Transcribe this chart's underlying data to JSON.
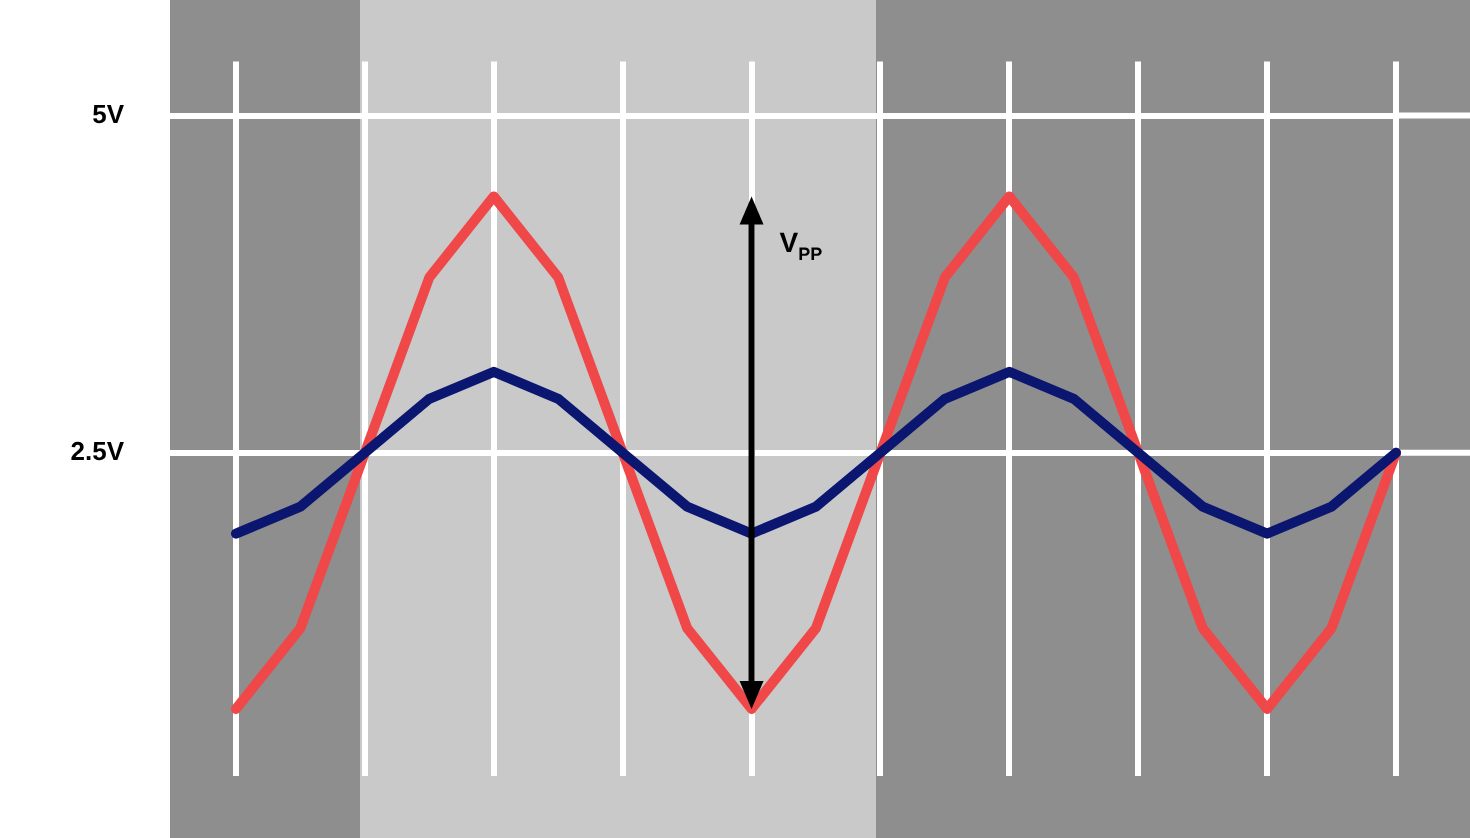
{
  "chart_data": {
    "type": "line",
    "categories": [
      null,
      null,
      null,
      null,
      null,
      null,
      null,
      null,
      null,
      null,
      null,
      null,
      null,
      null,
      null,
      null,
      null,
      null,
      null
    ],
    "series": [
      {
        "color": "#0b1670",
        "values": [
          1.9,
          2.1,
          2.5,
          2.9,
          3.1,
          2.9,
          2.5,
          2.1,
          1.9,
          2.1,
          2.5,
          2.9,
          3.1,
          2.9,
          2.5,
          2.1,
          1.9,
          2.1,
          2.5
        ]
      },
      {
        "color": "#f04848",
        "values": [
          0.6,
          1.2,
          2.5,
          3.8,
          4.4,
          3.8,
          2.5,
          1.2,
          0.6,
          1.2,
          2.5,
          3.8,
          4.4,
          3.8,
          2.5,
          1.2,
          0.6,
          1.2,
          2.5
        ]
      }
    ],
    "ylim": [
      0.1,
      5.4
    ],
    "yticks": [
      {
        "value": 2.5,
        "label": "2.5V"
      },
      {
        "value": 5,
        "label": "5V"
      }
    ],
    "annotations": [
      "V$_{PP}$"
    ],
    "tick_labels": "y",
    "grid": true,
    "legend": false,
    "marker": "none",
    "line_style": "solid"
  }
}
